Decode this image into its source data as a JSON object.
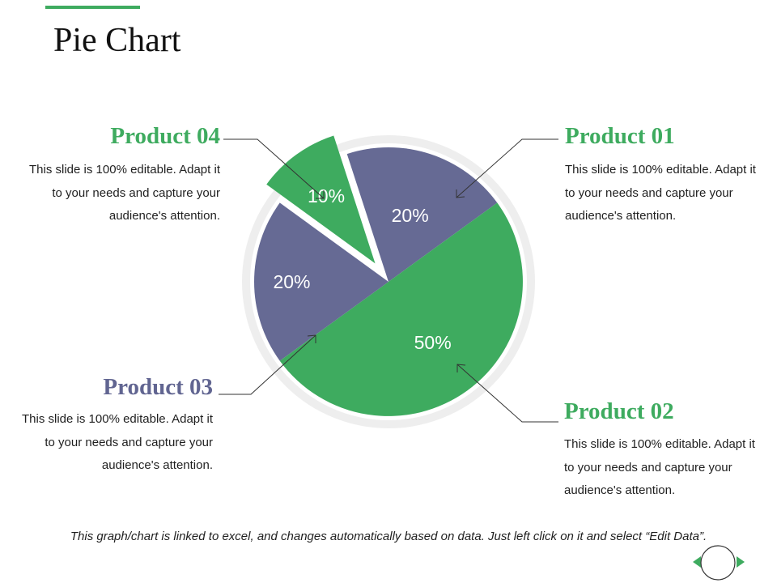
{
  "title": "Pie Chart",
  "colors": {
    "green": "#3eab5f",
    "purple": "#666a94",
    "title_purple": "#616591",
    "ring": "#eeeeee",
    "text": "#1f1f1f"
  },
  "chart_data": {
    "type": "pie",
    "title": "Pie Chart",
    "slices": [
      {
        "name": "Product 01",
        "value": 20,
        "label": "20%",
        "color": "#666a94",
        "exploded": false
      },
      {
        "name": "Product 02",
        "value": 50,
        "label": "50%",
        "color": "#3eab5f",
        "exploded": false
      },
      {
        "name": "Product 03",
        "value": 20,
        "label": "20%",
        "color": "#666a94",
        "exploded": false
      },
      {
        "name": "Product 04",
        "value": 10,
        "label": "10%",
        "color": "#3eab5f",
        "exploded": true
      }
    ]
  },
  "products": [
    {
      "title": "Product 01",
      "description": "This slide is 100% editable. Adapt it to your needs and capture your audience's attention."
    },
    {
      "title": "Product 02",
      "description": "This slide is 100% editable. Adapt it to your needs and capture your audience's attention."
    },
    {
      "title": "Product 03",
      "description": "This slide is 100% editable. Adapt it to your needs and capture your audience's attention."
    },
    {
      "title": "Product 04",
      "description": "This slide is 100% editable. Adapt it to your needs and capture your audience's attention."
    }
  ],
  "footnote": "This graph/chart is linked to excel, and changes automatically based on data. Just left click on it and select “Edit Data”."
}
